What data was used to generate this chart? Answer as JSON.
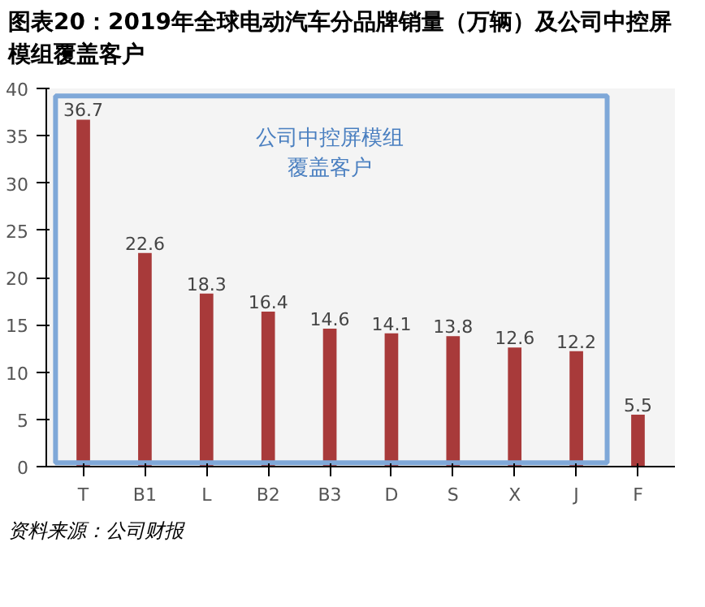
{
  "chart_data": {
    "type": "bar",
    "title": "图表20：2019年全球电动汽车分品牌销量（万辆）及公司中控屏模组覆盖客户",
    "categories": [
      "T",
      "B1",
      "L",
      "B2",
      "B3",
      "D",
      "S",
      "X",
      "J",
      "F"
    ],
    "values": [
      36.7,
      22.6,
      18.3,
      16.4,
      14.6,
      14.1,
      13.8,
      12.6,
      12.2,
      5.5
    ],
    "color": "#a83a3a",
    "ylim": [
      0,
      40
    ],
    "yticks": [
      0,
      5,
      10,
      15,
      20,
      25,
      30,
      35,
      40
    ],
    "data_labels": true,
    "grid": false,
    "annotations": [
      "公司中控屏模组",
      "覆盖客户",
      "资料来源：公司财报"
    ]
  }
}
